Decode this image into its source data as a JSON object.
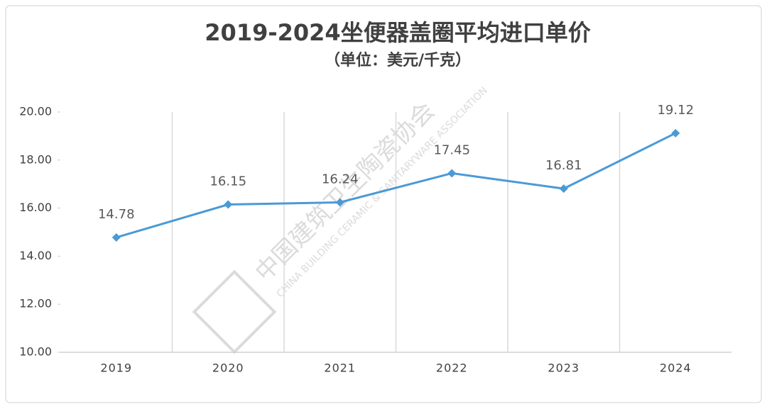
{
  "chart_data": {
    "type": "line",
    "title": "2019-2024坐便器盖圈平均进口单价",
    "subtitle": "（单位：美元/千克）",
    "categories": [
      "2019",
      "2020",
      "2021",
      "2022",
      "2023",
      "2024"
    ],
    "values": [
      14.78,
      16.15,
      16.24,
      17.45,
      16.81,
      19.12
    ],
    "color": "#4a9ad6",
    "ylim": [
      10,
      20
    ],
    "yticks": [
      {
        "value": 10,
        "label": "10.00"
      },
      {
        "value": 12,
        "label": "12.00"
      },
      {
        "value": 14,
        "label": "14.00"
      },
      {
        "value": 16,
        "label": "16.00"
      },
      {
        "value": 18,
        "label": "18.00"
      },
      {
        "value": 20,
        "label": "20.00"
      }
    ],
    "grid": true,
    "watermark": "中国建筑卫生陶瓷协会",
    "watermark_en": "CHINA BUILDING CERAMIC & SANITARYWARE ASSOCIATION"
  }
}
